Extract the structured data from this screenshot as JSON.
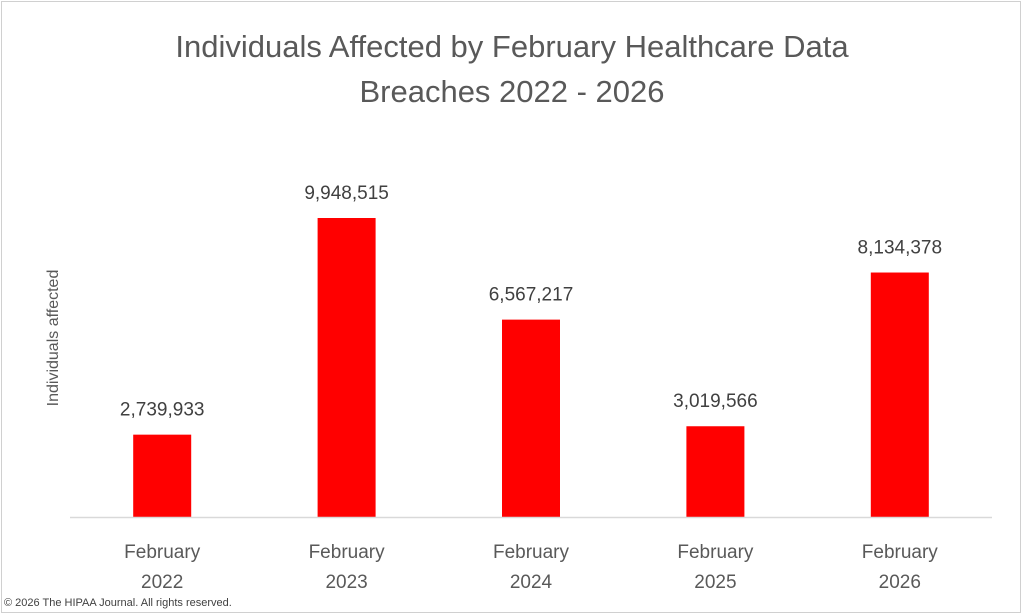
{
  "chart_data": {
    "type": "bar",
    "title_lines": [
      "Individuals Affected by February Healthcare Data",
      "Breaches 2022 - 2026"
    ],
    "ylabel": "Individuals affected",
    "xlabel": "",
    "categories": [
      [
        "February",
        "2022"
      ],
      [
        "February",
        "2023"
      ],
      [
        "February",
        "2024"
      ],
      [
        "February",
        "2025"
      ],
      [
        "February",
        "2026"
      ]
    ],
    "values": [
      2739933,
      9948515,
      6567217,
      3019566,
      8134378
    ],
    "data_labels": [
      "2,739,933",
      "9,948,515",
      "6,567,217",
      "3,019,566",
      "8,134,378"
    ],
    "ylim": [
      0,
      11000000
    ],
    "grid": false,
    "legend": "none",
    "bar_color": "#FF0000",
    "axis_color": "#d9d9d9"
  },
  "footer": {
    "copyright": "© 2026 The HIPAA Journal. All rights reserved."
  }
}
